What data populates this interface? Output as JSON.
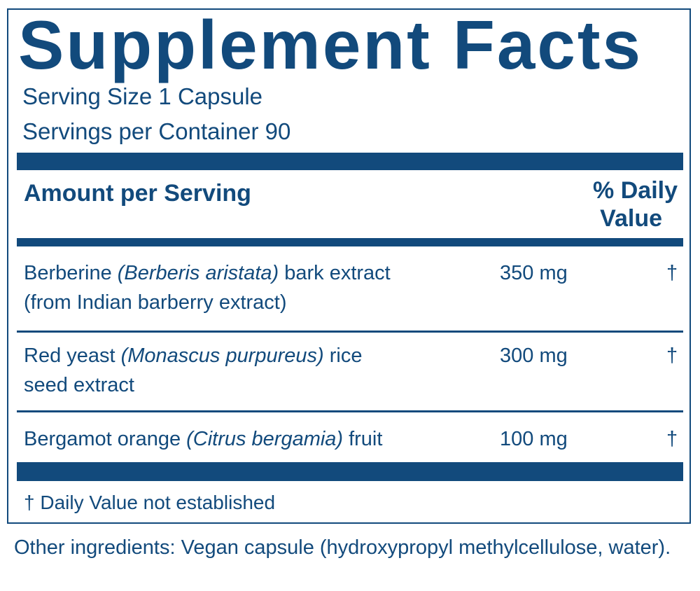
{
  "label": {
    "title": "Supplement Facts",
    "serving_size": "Serving Size 1 Capsule",
    "servings_per_container": "Servings per Container 90",
    "header": {
      "amount": "Amount per Serving",
      "daily_value_line1": "% Daily",
      "daily_value_line2": "Value"
    },
    "rows": [
      {
        "name": [
          "Berberine",
          "(Berberis aristata)",
          "bark extract"
        ],
        "name_line2": "(from Indian barberry extract)",
        "amount": "350 mg",
        "daily_value": "†"
      },
      {
        "name": [
          "Red yeast",
          "(Monascus purpureus)",
          "rice"
        ],
        "name_line2": "seed extract",
        "amount": "300 mg",
        "daily_value": "†"
      },
      {
        "name": [
          "Bergamot orange",
          "(Citrus bergamia)",
          "fruit"
        ],
        "amount": "100 mg",
        "daily_value": "†"
      }
    ],
    "footnote": "†  Daily Value not established",
    "other_ingredients": "Other ingredients: Vegan capsule (hydroxypropyl methylcellulose, water)."
  }
}
